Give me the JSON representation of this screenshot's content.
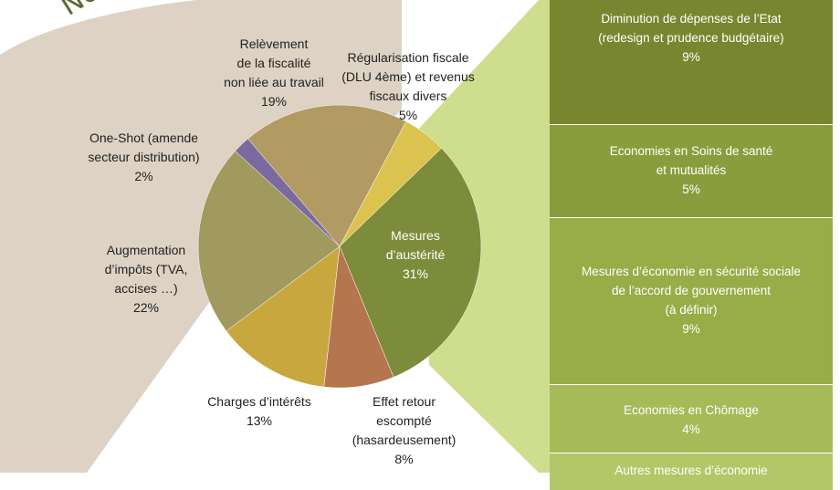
{
  "banner_text": "Nouvel",
  "chart_data": {
    "type": "pie",
    "slices": [
      {
        "lines": [
          "Mesures",
          "d’austérité"
        ],
        "value": 31,
        "label": "31%",
        "color": "#7d8c3a"
      },
      {
        "lines": [
          "Effet retour",
          "escompté",
          "(hasardeusement)"
        ],
        "value": 8,
        "label": "8%",
        "color": "#b5754f"
      },
      {
        "lines": [
          "Charges d’intérêts"
        ],
        "value": 13,
        "label": "13%",
        "color": "#c8a83e"
      },
      {
        "lines": [
          "Augmentation",
          "d’impôts (TVA,",
          "accises …)"
        ],
        "value": 22,
        "label": "22%",
        "color": "#a09a5e"
      },
      {
        "lines": [
          "One-Shot (amende",
          "secteur distribution)"
        ],
        "value": 2,
        "label": "2%",
        "color": "#7b6aa0"
      },
      {
        "lines": [
          "Relèvement",
          "de la fiscalité",
          "non liée au travail"
        ],
        "value": 19,
        "label": "19%",
        "color": "#b29a63"
      },
      {
        "lines": [
          "Régularisation fiscale",
          "(DLU 4ème) et revenus",
          "fiscaux divers"
        ],
        "value": 5,
        "label": "5%",
        "color": "#dcc24e"
      }
    ],
    "breakdown": [
      {
        "lines": [
          "Diminution de dépenses de l’Etat",
          "(redesign et prudence budgétaire)"
        ],
        "value": 9,
        "label": "9%",
        "color": "#78872f"
      },
      {
        "lines": [
          "Economies en Soins de santé",
          "et mutualités"
        ],
        "value": 5,
        "label": "5%",
        "color": "#8a9d3c"
      },
      {
        "lines": [
          "Mesures d’économie en sécurité sociale",
          "de l’accord de gouvernement",
          "(à définir)"
        ],
        "value": 9,
        "label": "9%",
        "color": "#98ac48"
      },
      {
        "lines": [
          "Economies en Chômage"
        ],
        "value": 4,
        "label": "4%",
        "color": "#a6ba58"
      },
      {
        "lines": [
          "Autres mesures d’économie"
        ],
        "value": null,
        "label": "",
        "color": "#b4c768"
      }
    ]
  }
}
